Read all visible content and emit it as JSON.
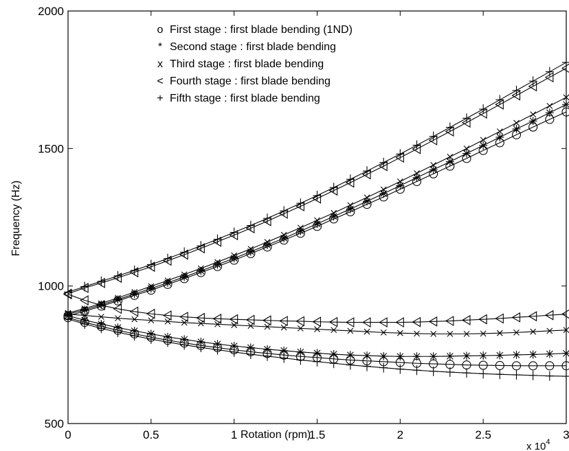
{
  "chart_data": {
    "type": "line",
    "title": "",
    "xlabel": "Rotation (rpm)",
    "ylabel": "Frequency (Hz)",
    "x_multiplier_label": "x 10",
    "x_multiplier_exponent": "4",
    "xlim": [
      0,
      3
    ],
    "ylim": [
      500,
      2000
    ],
    "xticks": [
      0,
      0.5,
      1,
      1.5,
      2,
      2.5,
      3
    ],
    "xtick_labels": [
      "0",
      "0.5",
      "1",
      "1.5",
      "2",
      "2.5",
      "3"
    ],
    "yticks": [
      500,
      1000,
      1500,
      2000
    ],
    "ytick_labels": [
      "500",
      "1000",
      "1500",
      "2000"
    ],
    "legend_position": "top-center",
    "legend": [
      {
        "symbol": "o",
        "label": "First stage : first blade bending (1ND)"
      },
      {
        "symbol": "*",
        "label": "Second stage : first blade bending"
      },
      {
        "symbol": "x",
        "label": "Third stage : first blade bending"
      },
      {
        "symbol": "<",
        "label": "Fourth stage : first blade bending"
      },
      {
        "symbol": "+",
        "label": "Fifth stage : first blade bending"
      }
    ],
    "x": [
      0,
      0.1,
      0.2,
      0.3,
      0.4,
      0.5,
      0.6,
      0.7,
      0.8,
      0.9,
      1.0,
      1.1,
      1.2,
      1.3,
      1.4,
      1.5,
      1.6,
      1.7,
      1.8,
      1.9,
      2.0,
      2.1,
      2.2,
      2.3,
      2.4,
      2.5,
      2.6,
      2.7,
      2.8,
      2.9,
      3.0
    ],
    "series": [
      {
        "marker": "o",
        "branch": "upper",
        "values": [
          892,
          908,
          927,
          946,
          966,
          985,
          1006,
          1027,
          1049,
          1071,
          1094,
          1118,
          1142,
          1167,
          1192,
          1217,
          1244,
          1270,
          1297,
          1324,
          1352,
          1380,
          1408,
          1436,
          1464,
          1493,
          1521,
          1550,
          1578,
          1606,
          1633
        ]
      },
      {
        "marker": "o",
        "branch": "lower",
        "values": [
          885,
          868,
          853,
          839,
          826,
          814,
          803,
          793,
          784,
          776,
          768,
          761,
          755,
          749,
          744,
          740,
          735,
          731,
          728,
          725,
          722,
          719,
          717,
          715,
          713,
          712,
          711,
          710,
          710,
          710,
          710
        ]
      },
      {
        "marker": "*",
        "branch": "upper",
        "values": [
          898,
          913,
          932,
          951,
          971,
          991,
          1012,
          1033,
          1055,
          1078,
          1101,
          1125,
          1149,
          1174,
          1200,
          1226,
          1253,
          1280,
          1308,
          1336,
          1365,
          1394,
          1423,
          1452,
          1482,
          1511,
          1541,
          1571,
          1600,
          1630,
          1660
        ]
      },
      {
        "marker": "*",
        "branch": "lower",
        "values": [
          892,
          876,
          862,
          849,
          837,
          826,
          815,
          806,
          797,
          789,
          782,
          776,
          770,
          765,
          760,
          756,
          752,
          749,
          747,
          745,
          744,
          744,
          744,
          745,
          746,
          747,
          748,
          750,
          751,
          753,
          755
        ]
      },
      {
        "marker": "x",
        "branch": "upper",
        "values": [
          902,
          918,
          937,
          957,
          978,
          999,
          1020,
          1042,
          1064,
          1087,
          1111,
          1135,
          1160,
          1186,
          1212,
          1239,
          1266,
          1294,
          1322,
          1351,
          1380,
          1410,
          1440,
          1470,
          1500,
          1531,
          1562,
          1593,
          1624,
          1655,
          1686
        ]
      },
      {
        "marker": "x",
        "branch": "lower",
        "values": [
          898,
          893,
          888,
          883,
          879,
          875,
          871,
          867,
          864,
          861,
          858,
          855,
          852,
          849,
          846,
          843,
          840,
          837,
          834,
          831,
          829,
          827,
          826,
          826,
          826,
          827,
          829,
          831,
          834,
          837,
          840
        ]
      },
      {
        "marker": "<",
        "branch": "upper",
        "values": [
          972,
          993,
          1011,
          1030,
          1050,
          1070,
          1092,
          1114,
          1137,
          1161,
          1185,
          1210,
          1236,
          1263,
          1290,
          1318,
          1347,
          1376,
          1406,
          1436,
          1467,
          1498,
          1530,
          1562,
          1594,
          1627,
          1660,
          1693,
          1726,
          1759,
          1792
        ]
      },
      {
        "marker": "<",
        "branch": "lower",
        "values": [
          970,
          948,
          930,
          917,
          907,
          899,
          893,
          888,
          884,
          881,
          879,
          877,
          875,
          873,
          872,
          870,
          869,
          868,
          868,
          868,
          868,
          869,
          871,
          873,
          876,
          879,
          882,
          886,
          890,
          894,
          898
        ]
      },
      {
        "marker": "+",
        "branch": "upper",
        "values": [
          978,
          998,
          1017,
          1037,
          1057,
          1078,
          1100,
          1123,
          1146,
          1170,
          1195,
          1220,
          1246,
          1273,
          1301,
          1329,
          1358,
          1388,
          1418,
          1449,
          1480,
          1512,
          1544,
          1577,
          1610,
          1643,
          1677,
          1711,
          1745,
          1779,
          1813
        ]
      },
      {
        "marker": "+",
        "branch": "lower",
        "values": [
          880,
          862,
          846,
          832,
          819,
          807,
          796,
          786,
          777,
          768,
          760,
          752,
          745,
          738,
          731,
          725,
          719,
          713,
          708,
          703,
          698,
          694,
          690,
          687,
          684,
          681,
          679,
          677,
          675,
          673,
          672
        ]
      }
    ]
  }
}
